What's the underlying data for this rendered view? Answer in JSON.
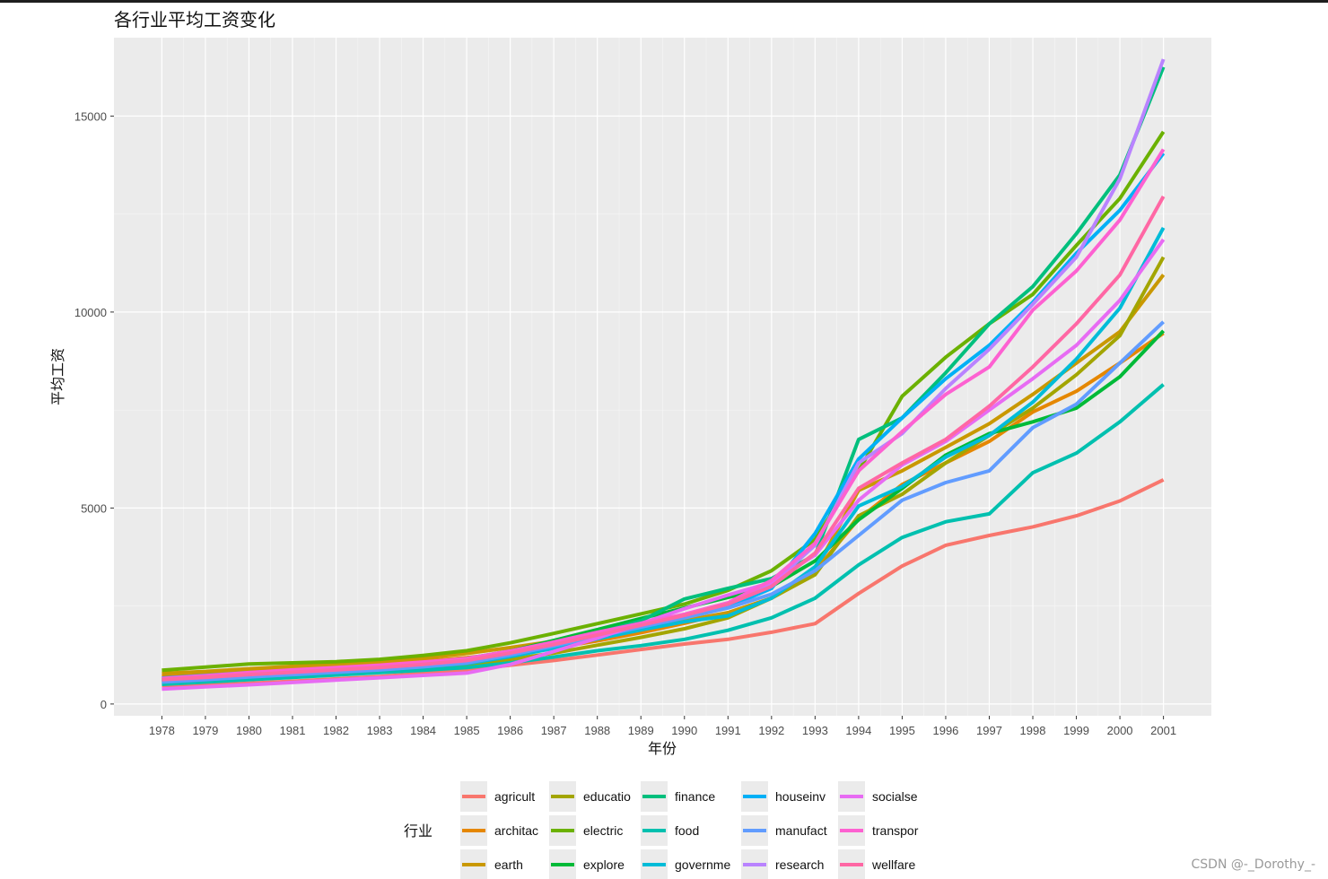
{
  "watermark": "CSDN @-_Dorothy_-",
  "chart_data": {
    "type": "line",
    "title": "各行业平均工资变化",
    "xlabel": "年份",
    "ylabel": "平均工资",
    "legend_title": "行业",
    "legend_position": "bottom",
    "grid": true,
    "xlim": [
      1976.9,
      2002.1
    ],
    "ylim": [
      -300,
      17000
    ],
    "y_ticks": [
      0,
      5000,
      10000,
      15000
    ],
    "x": [
      1978,
      1979,
      1980,
      1981,
      1982,
      1983,
      1984,
      1985,
      1986,
      1987,
      1988,
      1989,
      1990,
      1991,
      1992,
      1993,
      1994,
      1995,
      1996,
      1997,
      1998,
      1999,
      2000,
      2001
    ],
    "series": [
      {
        "name": "agricult",
        "color": "#F8766D",
        "values": [
          470,
          480,
          530,
          580,
          640,
          700,
          780,
          870,
          990,
          1110,
          1250,
          1390,
          1530,
          1650,
          1830,
          2050,
          2820,
          3520,
          4050,
          4300,
          4520,
          4800,
          5180,
          5720
        ]
      },
      {
        "name": "architac",
        "color": "#E58700",
        "values": [
          710,
          780,
          850,
          910,
          960,
          1020,
          1090,
          1180,
          1300,
          1430,
          1610,
          1820,
          2060,
          2330,
          2700,
          3400,
          4720,
          5600,
          6150,
          6700,
          7450,
          7980,
          8700,
          9460
        ]
      },
      {
        "name": "earth",
        "color": "#C99800",
        "values": [
          780,
          830,
          900,
          960,
          1020,
          1090,
          1170,
          1290,
          1440,
          1600,
          1770,
          1930,
          2130,
          2330,
          2700,
          3400,
          5450,
          5950,
          6550,
          7150,
          7900,
          8700,
          9500,
          10950
        ]
      },
      {
        "name": "educatio",
        "color": "#A3A500",
        "values": [
          550,
          590,
          650,
          710,
          760,
          820,
          890,
          1000,
          1140,
          1300,
          1500,
          1700,
          1920,
          2200,
          2700,
          3300,
          4800,
          5350,
          6150,
          6850,
          7550,
          8400,
          9400,
          11400
        ]
      },
      {
        "name": "electric",
        "color": "#6BB100",
        "values": [
          860,
          940,
          1020,
          1050,
          1080,
          1140,
          1240,
          1360,
          1560,
          1800,
          2050,
          2300,
          2550,
          2900,
          3400,
          4200,
          5950,
          7850,
          8850,
          9700,
          10450,
          11700,
          12900,
          14600
        ]
      },
      {
        "name": "explore",
        "color": "#00BA38",
        "values": [
          620,
          690,
          760,
          820,
          880,
          940,
          1020,
          1140,
          1350,
          1620,
          1900,
          2180,
          2450,
          2720,
          3000,
          3650,
          4700,
          5500,
          6350,
          6900,
          7200,
          7550,
          8350,
          9520
        ]
      },
      {
        "name": "finance",
        "color": "#00BF7D",
        "values": [
          580,
          640,
          710,
          780,
          840,
          890,
          970,
          1080,
          1310,
          1540,
          1810,
          2120,
          2680,
          2950,
          3200,
          3800,
          6750,
          7300,
          8450,
          9700,
          10650,
          12000,
          13500,
          16250
        ]
      },
      {
        "name": "food",
        "color": "#00C0AF",
        "values": [
          500,
          560,
          620,
          680,
          740,
          800,
          860,
          930,
          1050,
          1200,
          1360,
          1490,
          1650,
          1880,
          2200,
          2700,
          3550,
          4250,
          4650,
          4850,
          5900,
          6400,
          7200,
          8150
        ]
      },
      {
        "name": "governme",
        "color": "#00BCD8",
        "values": [
          580,
          640,
          710,
          770,
          830,
          890,
          950,
          1030,
          1210,
          1420,
          1660,
          1890,
          2100,
          2250,
          2700,
          3500,
          5050,
          5550,
          6300,
          6850,
          7700,
          8800,
          10100,
          12150
        ]
      },
      {
        "name": "houseinv",
        "color": "#00B0F6",
        "values": [
          660,
          730,
          800,
          860,
          920,
          980,
          1060,
          1160,
          1350,
          1560,
          1790,
          2020,
          2250,
          2480,
          2950,
          4350,
          6250,
          7300,
          8300,
          9150,
          10250,
          11500,
          12600,
          14050
        ]
      },
      {
        "name": "manufact",
        "color": "#619CFF",
        "values": [
          560,
          620,
          690,
          750,
          810,
          870,
          950,
          1050,
          1250,
          1480,
          1720,
          1960,
          2200,
          2450,
          2800,
          3400,
          4300,
          5200,
          5650,
          5950,
          7050,
          7650,
          8700,
          9750
        ]
      },
      {
        "name": "research",
        "color": "#B983FF",
        "values": [
          640,
          700,
          770,
          830,
          890,
          950,
          1030,
          1130,
          1330,
          1560,
          1800,
          2040,
          2280,
          2550,
          3050,
          4050,
          6150,
          6900,
          8050,
          9050,
          10200,
          11400,
          13400,
          16450
        ]
      },
      {
        "name": "socialse",
        "color": "#E76BF3",
        "values": [
          380,
          440,
          490,
          550,
          610,
          670,
          730,
          790,
          1010,
          1340,
          1680,
          2050,
          2430,
          2780,
          3100,
          3800,
          5200,
          6100,
          6700,
          7500,
          8300,
          9150,
          10300,
          11850
        ]
      },
      {
        "name": "transpor",
        "color": "#FD61D1",
        "values": [
          650,
          720,
          800,
          870,
          930,
          990,
          1070,
          1160,
          1350,
          1580,
          1830,
          2060,
          2290,
          2580,
          3150,
          4100,
          5950,
          6950,
          7900,
          8600,
          10050,
          11050,
          12350,
          14150
        ]
      },
      {
        "name": "wellfare",
        "color": "#FF67A4",
        "values": [
          620,
          680,
          750,
          810,
          870,
          930,
          1010,
          1110,
          1300,
          1520,
          1760,
          2010,
          2260,
          2550,
          3000,
          3850,
          5500,
          6150,
          6750,
          7600,
          8600,
          9700,
          10950,
          12950
        ]
      }
    ]
  }
}
